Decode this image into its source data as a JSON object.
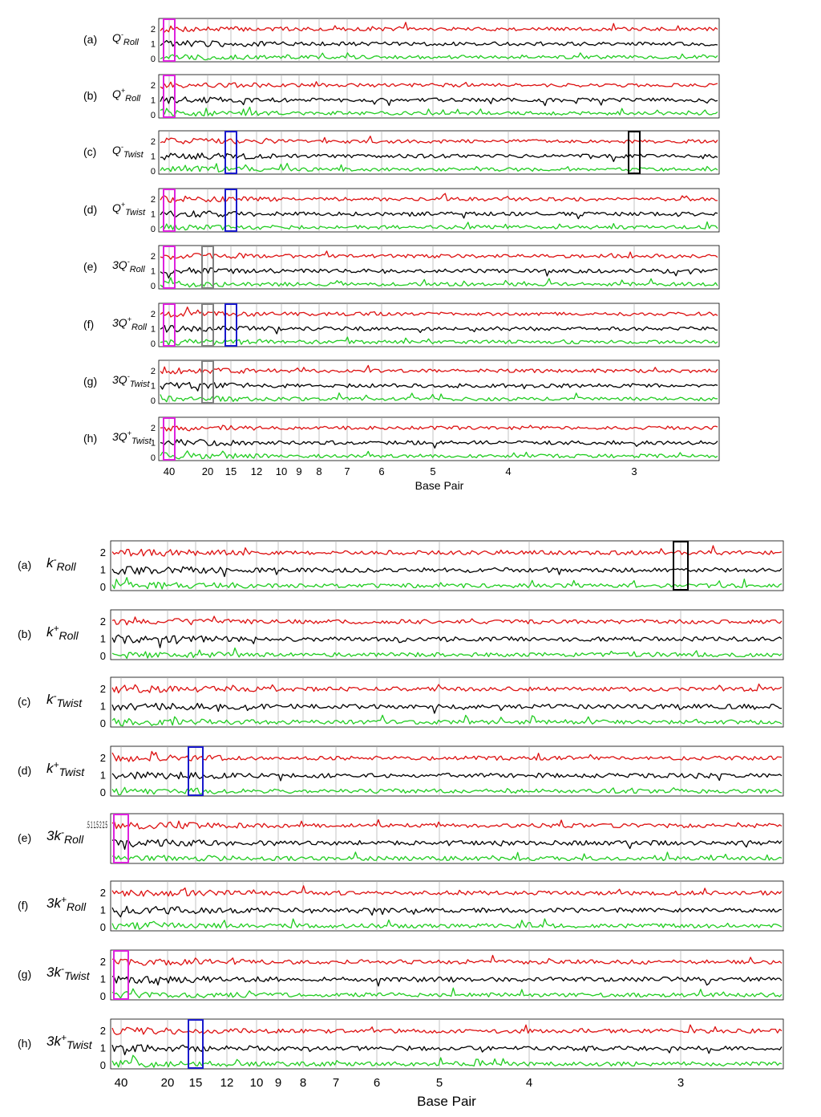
{
  "colors": {
    "red": "#dd1111",
    "black": "#000000",
    "green": "#22cc22",
    "magenta": "#dd22dd",
    "blue": "#1a1acc",
    "gray": "#808080",
    "frame": "#000000",
    "grid": "#aaaaaa"
  },
  "chart_data": [
    {
      "type": "line",
      "xlabel": "Base Pair",
      "x_ticks": [
        "40",
        "20",
        "15",
        "12",
        "10",
        "9",
        "8",
        "7",
        "6",
        "5",
        "4",
        "3"
      ],
      "y_ticks": [
        "0",
        "1",
        "2"
      ],
      "ylim": [
        0,
        2.5
      ],
      "series_colors": [
        "red",
        "black",
        "green"
      ],
      "panels": [
        {
          "label": "(a)",
          "prefix": "",
          "base": "Q",
          "sup": "-",
          "sub": "Roll",
          "highlights": [
            {
              "color": "magenta",
              "tick": "40"
            }
          ]
        },
        {
          "label": "(b)",
          "prefix": "",
          "base": "Q",
          "sup": "+",
          "sub": "Roll",
          "highlights": [
            {
              "color": "magenta",
              "tick": "40"
            }
          ]
        },
        {
          "label": "(c)",
          "prefix": "",
          "base": "Q",
          "sup": "-",
          "sub": "Twist",
          "highlights": [
            {
              "color": "blue",
              "tick": "15"
            },
            {
              "color": "black",
              "tick": "3"
            }
          ]
        },
        {
          "label": "(d)",
          "prefix": "",
          "base": "Q",
          "sup": "+",
          "sub": "Twist",
          "highlights": [
            {
              "color": "magenta",
              "tick": "40"
            },
            {
              "color": "blue",
              "tick": "15"
            }
          ]
        },
        {
          "label": "(e)",
          "prefix": "3",
          "base": "Q",
          "sup": "-",
          "sub": "Roll",
          "highlights": [
            {
              "color": "magenta",
              "tick": "40"
            },
            {
              "color": "gray",
              "tick": "20"
            }
          ]
        },
        {
          "label": "(f)",
          "prefix": "3",
          "base": "Q",
          "sup": "+",
          "sub": "Roll",
          "highlights": [
            {
              "color": "magenta",
              "tick": "40"
            },
            {
              "color": "gray",
              "tick": "20"
            },
            {
              "color": "blue",
              "tick": "15"
            }
          ]
        },
        {
          "label": "(g)",
          "prefix": "3",
          "base": "Q",
          "sup": "-",
          "sub": "Twist",
          "highlights": [
            {
              "color": "gray",
              "tick": "20"
            }
          ]
        },
        {
          "label": "(h)",
          "prefix": "3",
          "base": "Q",
          "sup": "+",
          "sub": "Twist",
          "highlights": [
            {
              "color": "magenta",
              "tick": "40"
            }
          ]
        }
      ]
    },
    {
      "type": "line",
      "xlabel": "Base Pair",
      "x_ticks": [
        "40",
        "20",
        "15",
        "12",
        "10",
        "9",
        "8",
        "7",
        "6",
        "5",
        "4",
        "3"
      ],
      "y_ticks": [
        "0",
        "1",
        "2"
      ],
      "y_ticks_alt": ".5 1 1.5 2 2.5",
      "ylim": [
        0,
        2.5
      ],
      "series_colors": [
        "red",
        "black",
        "green"
      ],
      "panels": [
        {
          "label": "(a)",
          "prefix": "",
          "base": "k",
          "sup": "-",
          "sub": "Roll",
          "highlights": [
            {
              "color": "black",
              "tick": "3"
            }
          ]
        },
        {
          "label": "(b)",
          "prefix": "",
          "base": "k",
          "sup": "+",
          "sub": "Roll",
          "highlights": []
        },
        {
          "label": "(c)",
          "prefix": "",
          "base": "k",
          "sup": "-",
          "sub": "Twist",
          "highlights": []
        },
        {
          "label": "(d)",
          "prefix": "",
          "base": "k",
          "sup": "+",
          "sub": "Twist",
          "highlights": [
            {
              "color": "blue",
              "tick": "15"
            }
          ]
        },
        {
          "label": "(e)",
          "prefix": "3",
          "base": "k",
          "sup": "-",
          "sub": "Roll",
          "highlights": [
            {
              "color": "magenta",
              "tick": "40"
            }
          ]
        },
        {
          "label": "(f)",
          "prefix": "3",
          "base": "k",
          "sup": "+",
          "sub": "Roll",
          "highlights": []
        },
        {
          "label": "(g)",
          "prefix": "3",
          "base": "k",
          "sup": "-",
          "sub": "Twist",
          "highlights": [
            {
              "color": "magenta",
              "tick": "40"
            }
          ]
        },
        {
          "label": "(h)",
          "prefix": "3",
          "base": "k",
          "sup": "+",
          "sub": "Twist",
          "highlights": [
            {
              "color": "blue",
              "tick": "15"
            }
          ]
        }
      ]
    }
  ]
}
